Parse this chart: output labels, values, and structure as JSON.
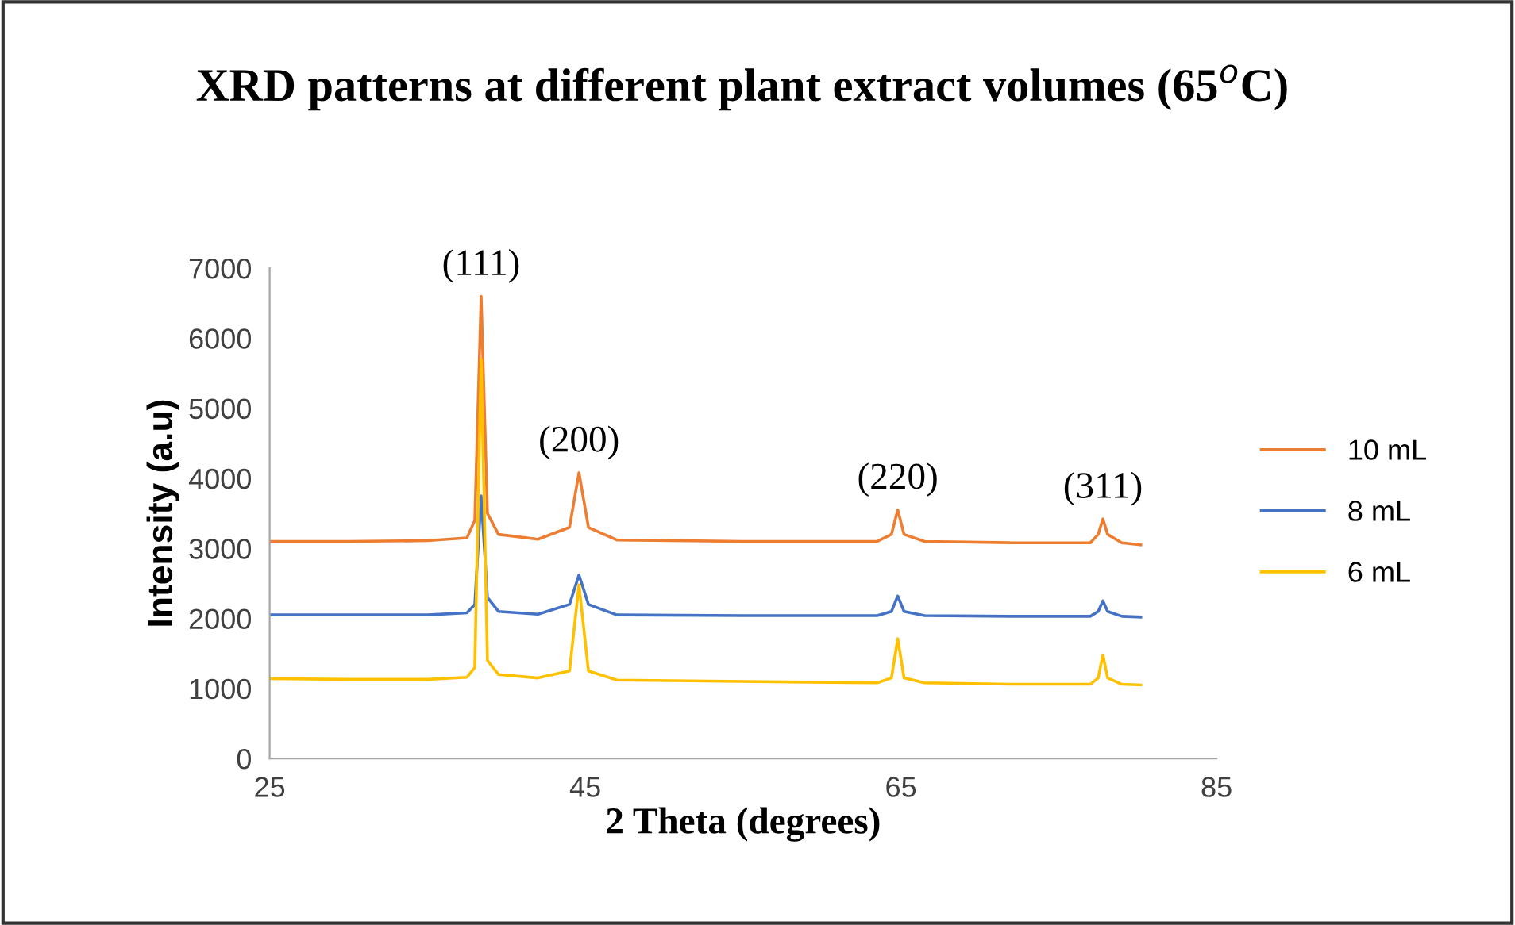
{
  "chart_data": {
    "type": "line",
    "title": "XRD patterns at different plant extract volumes (65$^{o}$C)",
    "xlabel": "2 Theta (degrees)",
    "ylabel": "Intensity (a.u)",
    "x": [
      25,
      30,
      35,
      37.5,
      38.0,
      38.4,
      38.8,
      39.5,
      42,
      44.0,
      44.6,
      45.2,
      47,
      55,
      63.5,
      64.4,
      64.8,
      65.2,
      66.5,
      72,
      77.0,
      77.5,
      77.8,
      78.1,
      79,
      80.2
    ],
    "series": [
      {
        "name": "10 mL",
        "color": "#ed7d31",
        "values": [
          3100,
          3100,
          3110,
          3150,
          3400,
          6600,
          3500,
          3200,
          3130,
          3300,
          4080,
          3300,
          3120,
          3100,
          3100,
          3200,
          3550,
          3200,
          3100,
          3080,
          3080,
          3200,
          3420,
          3200,
          3080,
          3050
        ]
      },
      {
        "name": "8 mL",
        "color": "#4472c4",
        "values": [
          2050,
          2050,
          2050,
          2080,
          2200,
          3750,
          2300,
          2100,
          2060,
          2200,
          2620,
          2200,
          2050,
          2040,
          2040,
          2100,
          2320,
          2100,
          2040,
          2030,
          2030,
          2100,
          2250,
          2100,
          2030,
          2020
        ]
      },
      {
        "name": "6 mL",
        "color": "#ffc000",
        "values": [
          1140,
          1130,
          1130,
          1160,
          1300,
          5700,
          1400,
          1200,
          1150,
          1250,
          2480,
          1250,
          1120,
          1100,
          1080,
          1150,
          1710,
          1150,
          1080,
          1060,
          1060,
          1150,
          1480,
          1150,
          1060,
          1050
        ]
      }
    ],
    "annotations": [
      {
        "text": "(111)",
        "x": 38.4,
        "y": 6600
      },
      {
        "text": "(200)",
        "x": 44.6,
        "y": 4080
      },
      {
        "text": "(220)",
        "x": 64.8,
        "y": 3550
      },
      {
        "text": "(311)",
        "x": 77.8,
        "y": 3420
      }
    ],
    "xlim": [
      25,
      85
    ],
    "xticks": [
      25,
      45,
      65,
      85
    ],
    "ylim": [
      0,
      7000
    ],
    "yticks": [
      0,
      1000,
      2000,
      3000,
      4000,
      5000,
      6000,
      7000
    ],
    "grid": false,
    "legend": "right",
    "marker": "none",
    "line_style": "solid"
  }
}
